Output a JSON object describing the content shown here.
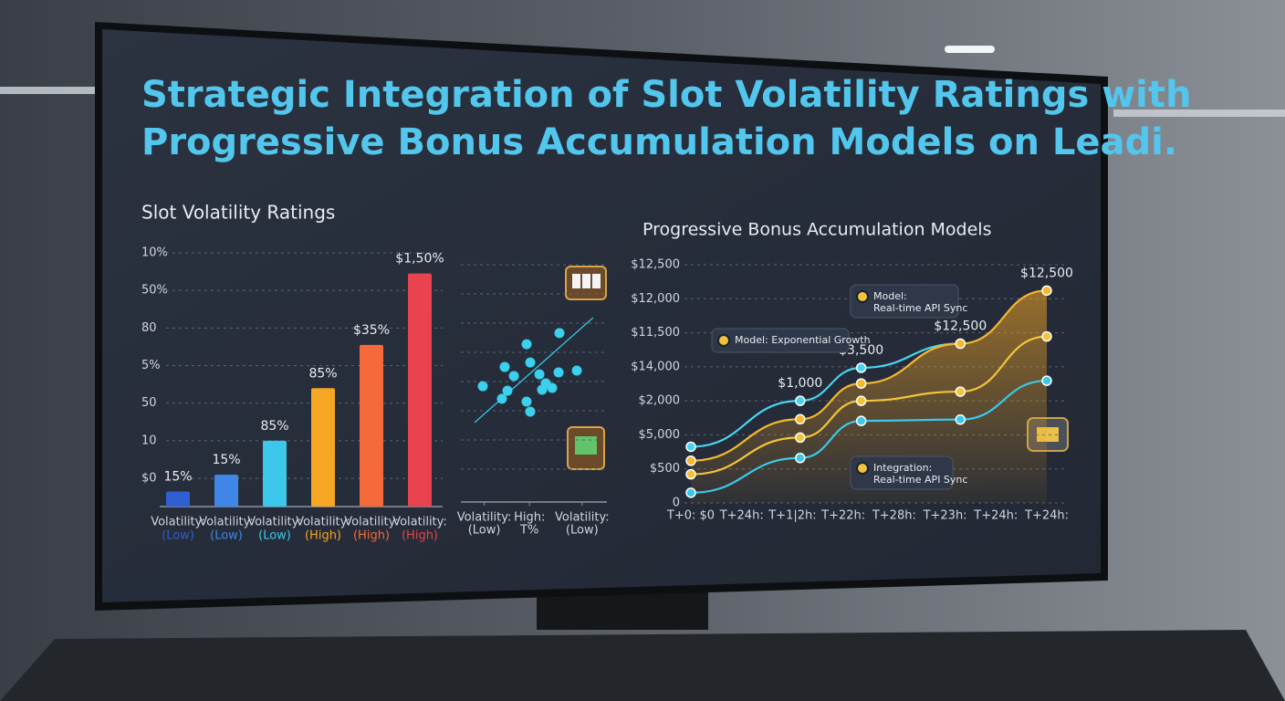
{
  "title_lines": [
    "Strategic Integration of Slot Volatility Ratings with",
    "Progressive Bonus Accumulation Models on Leadi."
  ],
  "chart_data": [
    {
      "type": "bar",
      "title": "Slot Volatility Ratings",
      "categories": [
        [
          "Volatility:",
          "(Low)"
        ],
        [
          "Volatility:",
          "(Low)"
        ],
        [
          "Volatility:",
          "(Low)"
        ],
        [
          "Volatility:",
          "(High)"
        ],
        [
          "Volatility:",
          "(High)"
        ],
        [
          "Volatility:",
          "(High)"
        ]
      ],
      "values": [
        -0.35,
        0.1,
        1.0,
        2.4,
        3.55,
        5.45
      ],
      "colors": [
        "#2f5fd0",
        "#3f86e6",
        "#3cc8ea",
        "#f5a623",
        "#f56a3a",
        "#e8434f"
      ],
      "annotations": [
        "15%",
        "15%",
        "85%",
        "85%",
        "$35%",
        "$1,50%"
      ],
      "ylim": [
        -0.75,
        6
      ],
      "yticks": [
        {
          "value": 0,
          "label": "$0"
        },
        {
          "value": 1,
          "label": "10"
        },
        {
          "value": 2,
          "label": "50"
        },
        {
          "value": 3,
          "label": "5%"
        },
        {
          "value": 4,
          "label": "80"
        },
        {
          "value": 5,
          "label": "50%"
        },
        {
          "value": 6,
          "label": "10%"
        }
      ],
      "grid": true
    },
    {
      "type": "scatter",
      "x": [
        6.75,
        4.5,
        3.0,
        4.75,
        5.38,
        6.69,
        7.94,
        3.63,
        5.81,
        1.5,
        3.19,
        6.25,
        5.56,
        4.5,
        4.75,
        2.81
      ],
      "y": [
        7.12,
        6.65,
        5.69,
        5.88,
        5.38,
        5.46,
        5.54,
        5.31,
        5.0,
        4.88,
        4.69,
        4.81,
        4.73,
        4.23,
        3.81,
        4.35
      ],
      "color": "#3ad0ee",
      "trend": {
        "x": [
          0.94,
          9.06
        ],
        "y": [
          3.35,
          7.77
        ]
      },
      "xlim": [
        0,
        10
      ],
      "ylim": [
        0,
        10
      ],
      "xticks": [
        {
          "value": 1.6,
          "label": [
            "Volatility:",
            "(Low)"
          ]
        },
        {
          "value": 4.7,
          "label": [
            "High:",
            "T%"
          ]
        },
        {
          "value": 8.3,
          "label": [
            "Volatility:",
            "(Low)"
          ]
        }
      ],
      "grid": true
    },
    {
      "type": "line",
      "title": "Progressive Bonus Accumulation Models",
      "x": [
        0,
        2.15,
        3.35,
        5.3,
        7
      ],
      "series": [
        {
          "color": "#48d4f0",
          "values": [
            1.65,
            3.0,
            3.97,
            4.68,
            null
          ]
        },
        {
          "color": "#f5b82e",
          "values": [
            1.24,
            2.46,
            3.51,
            4.68,
            6.24
          ],
          "area": true
        },
        {
          "color": "#f2c43a",
          "values": [
            0.84,
            1.92,
            3.0,
            3.27,
            4.89
          ]
        },
        {
          "color": "#3cc8ea",
          "values": [
            0.3,
            1.32,
            2.41,
            2.45,
            3.59
          ]
        }
      ],
      "annotations": [
        "$1,000",
        "$3,500",
        "$12,500",
        "$12,500"
      ],
      "callouts": [
        [
          "Model: Exponential Growth"
        ],
        [
          "Model:",
          "Real-time API Sync"
        ],
        [
          "Integration:",
          "Real-time API Sync"
        ]
      ],
      "xlim": [
        0,
        7
      ],
      "ylim": [
        0,
        7
      ],
      "xticks": [
        {
          "value": 0,
          "label": "T+0: $0"
        },
        {
          "value": 1,
          "label": "T+24h:"
        },
        {
          "value": 2,
          "label": "T+1|2h:"
        },
        {
          "value": 3,
          "label": "T+22h:"
        },
        {
          "value": 4,
          "label": "T+28h:"
        },
        {
          "value": 5,
          "label": "T+23h:"
        },
        {
          "value": 6,
          "label": "T+24h:"
        },
        {
          "value": 7,
          "label": "T+24h:"
        }
      ],
      "yticks": [
        0,
        {
          "value": 1,
          "label": "$500"
        },
        {
          "value": 2,
          "label": "$5,000"
        },
        {
          "value": 3,
          "label": "$2,000"
        },
        {
          "value": 4,
          "label": "$14,000"
        },
        {
          "value": 5,
          "label": "$11,500"
        },
        {
          "value": 6,
          "label": "$12,000"
        },
        {
          "value": 7,
          "label": "$12,500"
        }
      ],
      "grid": true
    }
  ]
}
